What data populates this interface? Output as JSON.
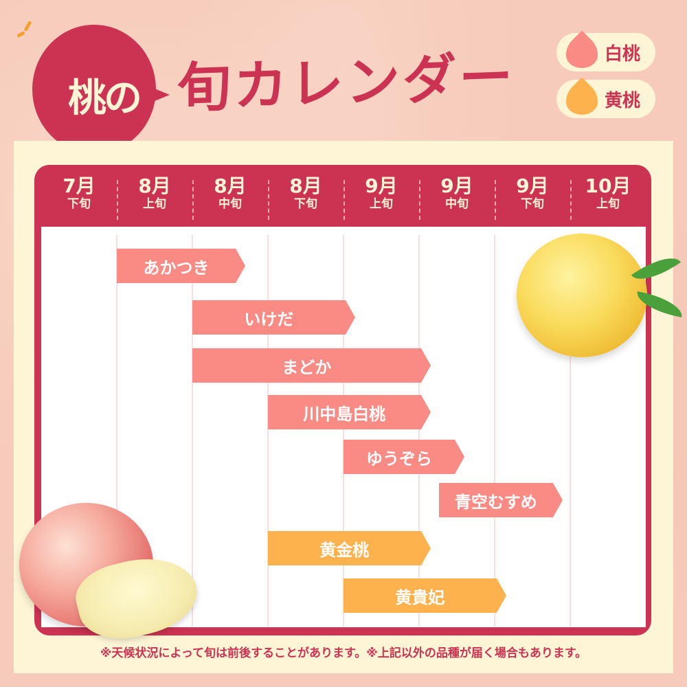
{
  "header": {
    "bubble_text": "桃の",
    "title": "旬カレンダー"
  },
  "legend": [
    {
      "label": "白桃",
      "color": "#f98a84"
    },
    {
      "label": "黄桃",
      "color": "#fdb24e"
    }
  ],
  "colors": {
    "accent": "#cc3352",
    "white_peach": "#f98a84",
    "yellow_peach": "#fdb24e",
    "panel": "#fdf5d5"
  },
  "chart_data": {
    "type": "bar",
    "orientation": "horizontal-range",
    "categories": [
      {
        "month": "7月",
        "period": "下旬"
      },
      {
        "month": "8月",
        "period": "上旬"
      },
      {
        "month": "8月",
        "period": "中旬"
      },
      {
        "month": "8月",
        "period": "下旬"
      },
      {
        "month": "9月",
        "period": "上旬"
      },
      {
        "month": "9月",
        "period": "中旬"
      },
      {
        "month": "9月",
        "period": "下旬"
      },
      {
        "month": "10月",
        "period": "上旬"
      }
    ],
    "series": [
      {
        "name": "あかつき",
        "type": "白桃",
        "start": 1,
        "end": 2.7
      },
      {
        "name": "いけだ",
        "type": "白桃",
        "start": 2,
        "end": 4.15
      },
      {
        "name": "まどか",
        "type": "白桃",
        "start": 2,
        "end": 5.15
      },
      {
        "name": "川中島白桃",
        "type": "白桃",
        "start": 3,
        "end": 5.15
      },
      {
        "name": "ゆうぞら",
        "type": "白桃",
        "start": 4,
        "end": 5.6
      },
      {
        "name": "青空むすめ",
        "type": "白桃",
        "start": 5.26,
        "end": 6.9
      },
      {
        "name": "黄金桃",
        "type": "黄桃",
        "start": 3,
        "end": 5.15
      },
      {
        "name": "黄貴妃",
        "type": "黄桃",
        "start": 4,
        "end": 6.15
      }
    ],
    "grid": true,
    "legend": "top-right"
  },
  "footer": {
    "note": "※天候状況によって旬は前後することがあります。※上記以外の品種が届く場合もあります。"
  }
}
